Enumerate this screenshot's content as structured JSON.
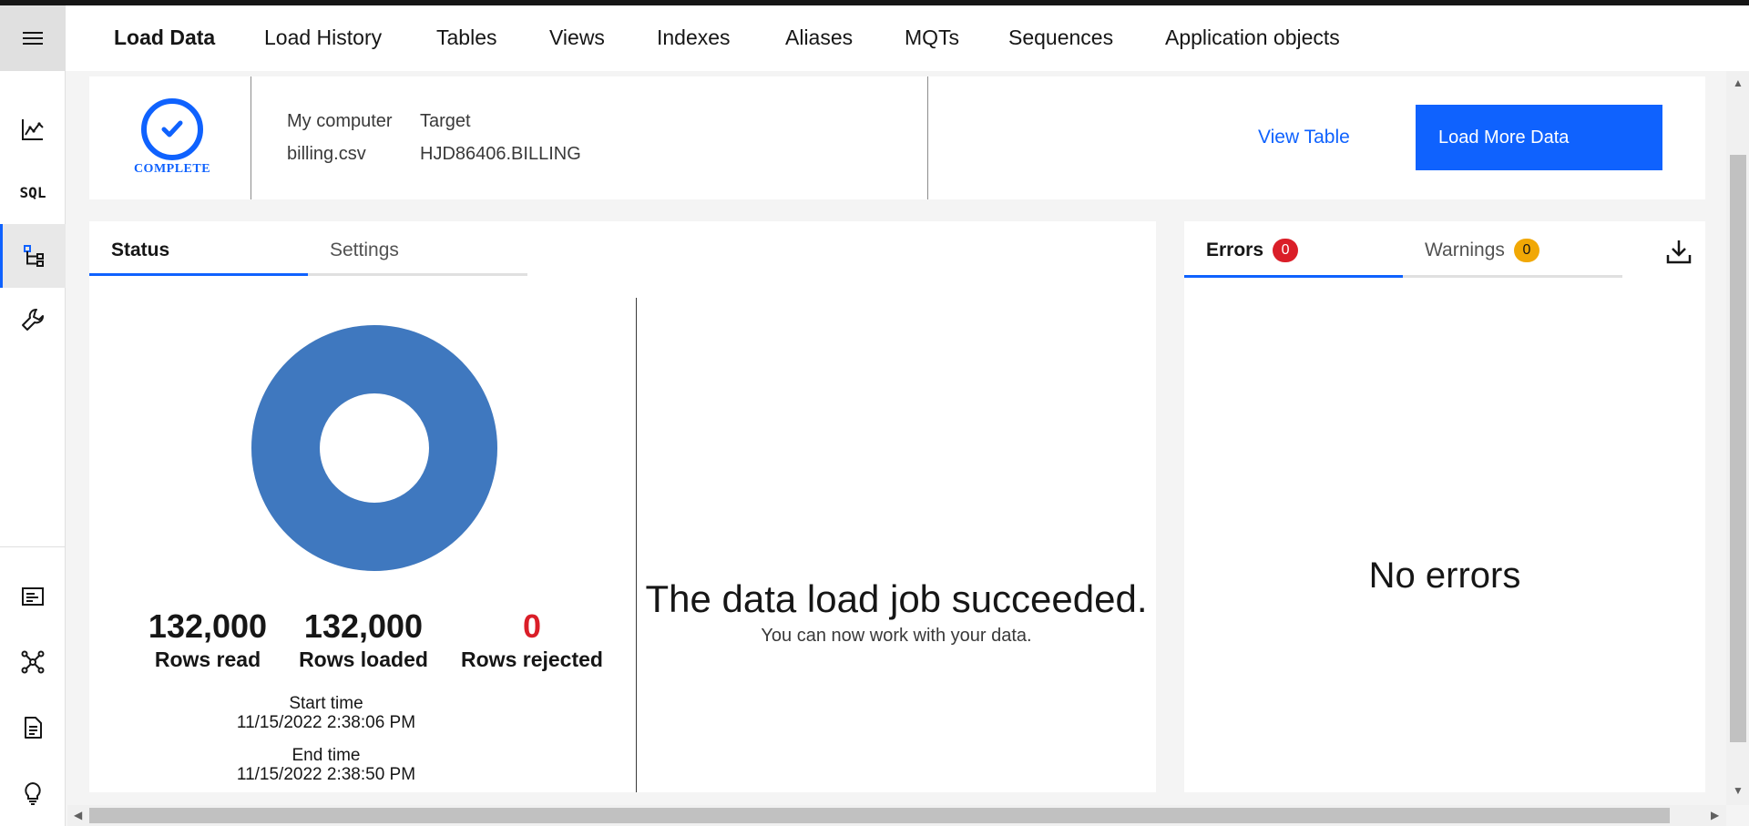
{
  "nav": {
    "tabs": [
      {
        "label": "Load Data",
        "active": true
      },
      {
        "label": "Load History"
      },
      {
        "label": "Tables"
      },
      {
        "label": "Views"
      },
      {
        "label": "Indexes"
      },
      {
        "label": "Aliases"
      },
      {
        "label": "MQTs"
      },
      {
        "label": "Sequences"
      },
      {
        "label": "Application objects"
      }
    ]
  },
  "rail": {
    "icons": [
      "menu-icon",
      "chart-icon",
      "sql-icon",
      "data-tree-icon",
      "wrench-icon",
      "console-icon",
      "network-icon",
      "document-icon",
      "lightbulb-icon"
    ],
    "sql_label": "SQL"
  },
  "summary": {
    "status_label": "COMPLETE",
    "source_header": "My computer",
    "source_value": "billing.csv",
    "target_header": "Target",
    "target_value": "HJD86406.BILLING",
    "view_table": "View Table",
    "load_more": "Load More Data"
  },
  "status_panel": {
    "tabs": [
      "Status",
      "Settings"
    ],
    "stats": [
      {
        "value": "132,000",
        "label": "Rows read"
      },
      {
        "value": "132,000",
        "label": "Rows loaded"
      },
      {
        "value": "0",
        "label": "Rows rejected"
      }
    ],
    "start_time_label": "Start time",
    "start_time": "11/15/2022 2:38:06 PM",
    "end_time_label": "End time",
    "end_time": "11/15/2022 2:38:50 PM",
    "success_title": "The data load job succeeded.",
    "success_sub": "You can now work with your data."
  },
  "donut": {
    "loaded_fraction": 1.0,
    "color": "#3f78bf"
  },
  "errors_panel": {
    "errors_label": "Errors",
    "errors_count": "0",
    "warnings_label": "Warnings",
    "warnings_count": "0",
    "empty_message": "No errors"
  },
  "colors": {
    "accent": "#0f62fe",
    "error": "#da1e28",
    "warning": "#f1a805"
  }
}
